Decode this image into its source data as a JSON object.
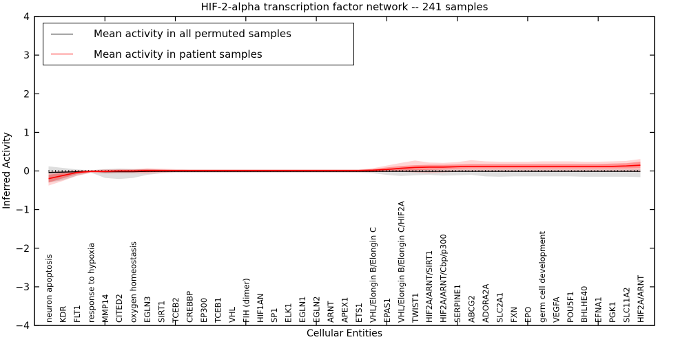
{
  "figure": {
    "title": "HIF-2-alpha transcription factor network -- 241 samples",
    "xlabel": "Cellular Entities",
    "ylabel": "Inferred Activity"
  },
  "legend": {
    "entries": [
      {
        "label": "Mean activity in all permuted samples",
        "color": "#000000"
      },
      {
        "label": "Mean activity in patient samples",
        "color": "#ff0000"
      }
    ]
  },
  "colors": {
    "permuted_line": "#000000",
    "patient_line": "#ff0000",
    "permuted_band": "rgba(0,0,0,0.13)",
    "patient_band_inner": "rgba(255,0,0,0.30)",
    "patient_band_outer": "rgba(255,0,0,0.16)",
    "frame": "#000000",
    "background": "#ffffff"
  },
  "chart_data": {
    "type": "line",
    "title": "HIF-2-alpha transcription factor network -- 241 samples",
    "xlabel": "Cellular Entities",
    "ylabel": "Inferred Activity",
    "ylim": [
      -4,
      4
    ],
    "ytick_values": [
      4,
      3,
      2,
      1,
      0,
      -1,
      -2,
      -3,
      -4
    ],
    "ytick_labels": [
      "4",
      "3",
      "2",
      "1",
      "0",
      "−1",
      "−2",
      "−3",
      "−4"
    ],
    "grid": false,
    "legend_position": "upper left",
    "zero_line_dotted": true,
    "categories": [
      "neuron apoptosis",
      "KDR",
      "FLT1",
      "response to hypoxia",
      "MMP14",
      "CITED2",
      "oxygen homeostasis",
      "EGLN3",
      "SIRT1",
      "TCEB2",
      "CREBBP",
      "EP300",
      "TCEB1",
      "VHL",
      "FIH (dimer)",
      "HIF1AN",
      "SP1",
      "ELK1",
      "EGLN1",
      "EGLN2",
      "ARNT",
      "APEX1",
      "ETS1",
      "VHL/Elongin B/Elongin C",
      "EPAS1",
      "VHL/Elongin B/Elongin C/HIF2A",
      "TWIST1",
      "HIF2A/ARNT/SIRT1",
      "HIF2A/ARNT/Cbp/p300",
      "SERPINE1",
      "ABCG2",
      "ADORA2A",
      "SLC2A1",
      "FXN",
      "EPO",
      "germ cell development",
      "VEGFA",
      "POU5F1",
      "BHLHE40",
      "EFNA1",
      "PGK1",
      "SLC11A2",
      "HIF2A/ARNT"
    ],
    "series": [
      {
        "name": "Mean activity in all permuted samples",
        "color": "#000000",
        "values": [
          -0.04,
          -0.03,
          -0.02,
          -0.01,
          -0.02,
          -0.02,
          -0.02,
          -0.01,
          -0.01,
          -0.01,
          -0.01,
          -0.01,
          -0.01,
          -0.01,
          -0.01,
          -0.01,
          -0.01,
          -0.01,
          -0.01,
          -0.01,
          -0.01,
          -0.01,
          -0.01,
          -0.01,
          -0.01,
          -0.01,
          -0.01,
          -0.01,
          -0.01,
          -0.01,
          -0.01,
          -0.01,
          -0.01,
          -0.01,
          -0.01,
          -0.01,
          -0.01,
          -0.01,
          -0.01,
          -0.01,
          -0.01,
          -0.01,
          -0.01
        ],
        "band_upper": [
          0.12,
          0.08,
          0.04,
          0.02,
          0.05,
          0.06,
          0.05,
          0.04,
          0.03,
          0.03,
          0.03,
          0.03,
          0.03,
          0.03,
          0.03,
          0.03,
          0.03,
          0.03,
          0.03,
          0.03,
          0.03,
          0.03,
          0.03,
          0.03,
          0.04,
          0.04,
          0.04,
          0.04,
          0.04,
          0.04,
          0.04,
          0.04,
          0.04,
          0.04,
          0.04,
          0.04,
          0.04,
          0.04,
          0.04,
          0.04,
          0.04,
          0.04,
          0.05
        ],
        "band_lower": [
          -0.3,
          -0.24,
          -0.12,
          -0.04,
          -0.18,
          -0.21,
          -0.18,
          -0.1,
          -0.06,
          -0.05,
          -0.05,
          -0.05,
          -0.05,
          -0.05,
          -0.05,
          -0.05,
          -0.05,
          -0.05,
          -0.05,
          -0.05,
          -0.05,
          -0.05,
          -0.05,
          -0.06,
          -0.1,
          -0.13,
          -0.11,
          -0.1,
          -0.12,
          -0.11,
          -0.1,
          -0.14,
          -0.15,
          -0.14,
          -0.14,
          -0.14,
          -0.14,
          -0.14,
          -0.15,
          -0.15,
          -0.15,
          -0.15,
          -0.16
        ]
      },
      {
        "name": "Mean activity in patient samples",
        "color": "#ff0000",
        "values": [
          -0.2,
          -0.12,
          -0.04,
          -0.01,
          -0.01,
          0.0,
          0.0,
          0.01,
          0.01,
          0.01,
          0.01,
          0.01,
          0.01,
          0.01,
          0.01,
          0.01,
          0.01,
          0.01,
          0.01,
          0.01,
          0.01,
          0.01,
          0.01,
          0.02,
          0.04,
          0.07,
          0.09,
          0.1,
          0.1,
          0.11,
          0.12,
          0.12,
          0.12,
          0.12,
          0.12,
          0.12,
          0.12,
          0.12,
          0.12,
          0.12,
          0.12,
          0.13,
          0.15
        ],
        "band_inner_upper": [
          -0.1,
          -0.05,
          0.0,
          0.01,
          0.02,
          0.03,
          0.03,
          0.05,
          0.04,
          0.03,
          0.03,
          0.03,
          0.03,
          0.03,
          0.03,
          0.03,
          0.03,
          0.03,
          0.03,
          0.03,
          0.03,
          0.03,
          0.03,
          0.05,
          0.09,
          0.13,
          0.15,
          0.16,
          0.16,
          0.17,
          0.18,
          0.18,
          0.18,
          0.18,
          0.18,
          0.18,
          0.18,
          0.18,
          0.18,
          0.18,
          0.19,
          0.2,
          0.24
        ],
        "band_inner_lower": [
          -0.3,
          -0.19,
          -0.08,
          -0.03,
          -0.04,
          -0.03,
          -0.03,
          -0.03,
          -0.02,
          -0.01,
          -0.01,
          -0.01,
          -0.01,
          -0.01,
          -0.01,
          -0.01,
          -0.01,
          -0.01,
          -0.01,
          -0.01,
          -0.01,
          -0.01,
          -0.01,
          -0.01,
          0.0,
          0.01,
          0.02,
          0.03,
          0.04,
          0.05,
          0.06,
          0.06,
          0.06,
          0.06,
          0.06,
          0.06,
          0.06,
          0.06,
          0.06,
          0.06,
          0.06,
          0.06,
          0.07
        ],
        "band_outer_upper": [
          -0.02,
          0.0,
          0.02,
          0.02,
          0.04,
          0.05,
          0.05,
          0.07,
          0.06,
          0.05,
          0.04,
          0.04,
          0.04,
          0.04,
          0.04,
          0.04,
          0.04,
          0.04,
          0.04,
          0.04,
          0.04,
          0.04,
          0.04,
          0.07,
          0.14,
          0.21,
          0.27,
          0.22,
          0.21,
          0.23,
          0.28,
          0.25,
          0.24,
          0.24,
          0.24,
          0.25,
          0.25,
          0.25,
          0.24,
          0.24,
          0.25,
          0.26,
          0.31
        ],
        "band_outer_lower": [
          -0.38,
          -0.26,
          -0.13,
          -0.05,
          -0.07,
          -0.06,
          -0.06,
          -0.07,
          -0.05,
          -0.03,
          -0.03,
          -0.03,
          -0.03,
          -0.03,
          -0.03,
          -0.03,
          -0.03,
          -0.03,
          -0.03,
          -0.03,
          -0.03,
          -0.03,
          -0.03,
          -0.03,
          -0.02,
          -0.02,
          -0.04,
          -0.06,
          -0.04,
          -0.02,
          -0.01,
          -0.02,
          -0.02,
          -0.02,
          -0.02,
          -0.02,
          -0.02,
          -0.02,
          -0.02,
          -0.02,
          -0.02,
          -0.02,
          -0.03
        ]
      }
    ]
  }
}
